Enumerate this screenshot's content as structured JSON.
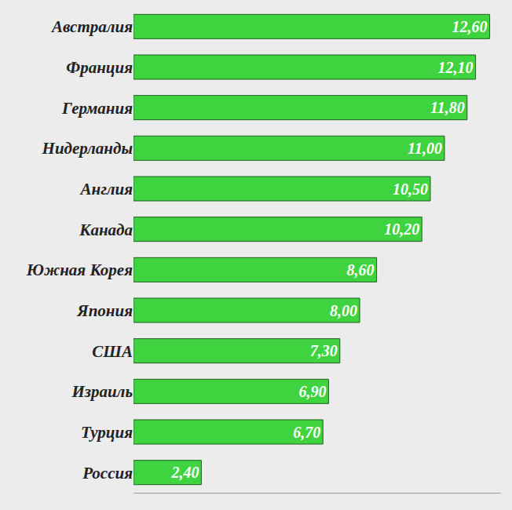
{
  "chart_data": {
    "type": "bar",
    "orientation": "horizontal",
    "categories": [
      "Австралия",
      "Франция",
      "Германия",
      "Нидерланды",
      "Англия",
      "Канада",
      "Южная Корея",
      "Япония",
      "США",
      "Израиль",
      "Турция",
      "Россия"
    ],
    "values": [
      12.6,
      12.1,
      11.8,
      11.0,
      10.5,
      10.2,
      8.6,
      8.0,
      7.3,
      6.9,
      6.7,
      2.4
    ],
    "value_labels": [
      "12,60",
      "12,10",
      "11,80",
      "11,00",
      "10,50",
      "10,20",
      "8,60",
      "8,00",
      "7,30",
      "6,90",
      "6,70",
      "2,40"
    ],
    "color": "#3fd43f",
    "xlim": [
      0,
      13
    ],
    "xticks": [],
    "data_labels": true,
    "tick_labels": "y",
    "grid": false
  }
}
